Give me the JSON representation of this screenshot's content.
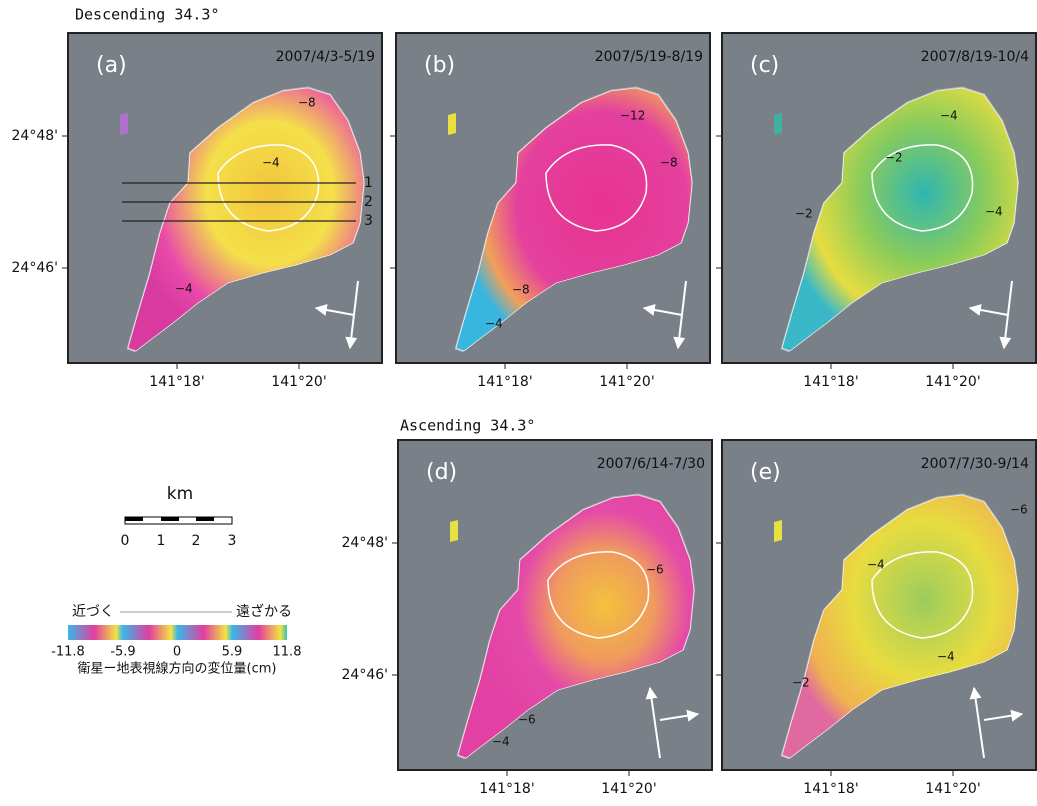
{
  "descending_title": "Descending 34.3°",
  "ascending_title": "Ascending 34.3°",
  "panels": [
    {
      "label": "(a)",
      "date": "2007/4/3-5/19",
      "contours": [
        "−8",
        "−4",
        "−4"
      ],
      "profiles": [
        "1",
        "2",
        "3"
      ]
    },
    {
      "label": "(b)",
      "date": "2007/5/19-8/19",
      "contours": [
        "−12",
        "−8",
        "−8",
        "−4"
      ]
    },
    {
      "label": "(c)",
      "date": "2007/8/19-10/4",
      "contours": [
        "−4",
        "−2",
        "−2",
        "−4"
      ]
    },
    {
      "label": "(d)",
      "date": "2007/6/14-7/30",
      "contours": [
        "−6",
        "−6",
        "−4"
      ]
    },
    {
      "label": "(e)",
      "date": "2007/7/30-9/14",
      "contours": [
        "−6",
        "−4",
        "−4",
        "−2"
      ]
    }
  ],
  "lat_labels": [
    "24°48'",
    "24°46'"
  ],
  "lon_labels": [
    "141°18'",
    "141°20'"
  ],
  "legend": {
    "scale_unit": "km",
    "scale_ticks": [
      "0",
      "1",
      "2",
      "3"
    ],
    "toward": "近づく",
    "away": "遠ざかる",
    "color_ticks": [
      "-11.8",
      "-5.9",
      "0",
      "5.9",
      "11.8"
    ],
    "caption": "衛星ー地表視線方向の変位量(cm)"
  }
}
